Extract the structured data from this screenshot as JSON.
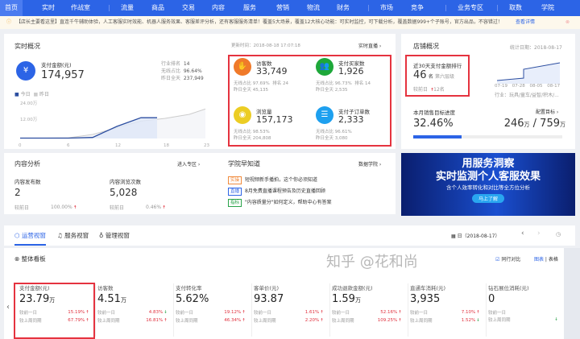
{
  "nav": {
    "items": [
      "首页",
      "实时",
      "作战室",
      "流量",
      "商品",
      "交易",
      "内容",
      "服务",
      "营销",
      "物流",
      "财务",
      "市场",
      "竞争",
      "业务专区",
      "取数",
      "学院"
    ],
    "active": "首页"
  },
  "notice": {
    "text": "【店长主要看这里】直连千牛辅助体验，人工客服实时效能、机器人服务效果、客服差评分析，还有客服服务清单！覆盖5大场景，覆盖12大核心功能：可实时监控，可下载分析，覆盖数据999+个子账号，官方出品，不容错过！",
    "link": "查看详情"
  },
  "realtime": {
    "title": "实时概况",
    "update_time": "更新时间：2018-08-18 17:07:18",
    "live_link": "实时直播 ›",
    "pay": {
      "label": "支付金额(元)",
      "value": "174,957",
      "rank_label": "行业排名",
      "rank": "14",
      "wireless_label": "无线占比",
      "wireless": "96.64%",
      "yesterday_label": "昨日全天",
      "yesterday": "237,949"
    },
    "legend": {
      "today": "今日",
      "yesterday": "昨日"
    },
    "chart_data": {
      "type": "line",
      "x_ticks": [
        "0",
        "6",
        "12",
        "18",
        "23"
      ],
      "y_ticks": [
        "12.00万",
        "24.00万"
      ],
      "series": [
        {
          "name": "今日",
          "x": [
            0,
            3,
            6,
            9,
            12,
            15,
            17
          ],
          "y": [
            0.3,
            0.3,
            0.3,
            0.8,
            9,
            15.5,
            15.5
          ]
        },
        {
          "name": "昨日",
          "x": [
            0,
            3,
            6,
            9,
            12,
            15,
            18,
            21,
            23
          ],
          "y": [
            0.3,
            0.3,
            0.5,
            3,
            8,
            13,
            15,
            18,
            22
          ]
        }
      ]
    },
    "metrics": [
      {
        "label": "访客数",
        "value": "33,749",
        "l1": "无线占比",
        "v1": "97.69%",
        "l2": "排名",
        "v2": "24",
        "l3": "昨日全天",
        "v3": "45,135",
        "color": "#f07a2a",
        "icon": "footprint-icon"
      },
      {
        "label": "支付买家数",
        "value": "1,926",
        "l1": "无线占比",
        "v1": "96.73%",
        "l2": "排名",
        "v2": "14",
        "l3": "昨日全天",
        "v3": "2,535",
        "color": "#1ea83a",
        "icon": "users-icon"
      },
      {
        "label": "浏览量",
        "value": "157,173",
        "l1": "无线占比",
        "v1": "98.53%",
        "l3": "昨日全天",
        "v3": "204,808",
        "color": "#eccd24",
        "icon": "eye-icon"
      },
      {
        "label": "支付子订单数",
        "value": "2,333",
        "l1": "无线占比",
        "v1": "96.61%",
        "l3": "昨日全天",
        "v3": "3,080",
        "color": "#1ea0ef",
        "icon": "order-icon"
      }
    ]
  },
  "shop": {
    "title": "店铺概况",
    "stat_date": "统计日期：2018-08-17",
    "rank_title": "近30天支付金额排行",
    "rank": "46",
    "rank_unit": "名",
    "tier": "第六层级",
    "compare_label": "较前日",
    "compare": "12名",
    "chart_x": [
      "07-19",
      "07-28",
      "08-05",
      "08-17"
    ],
    "industry": "行业：玩具/童车/益智/积木/...",
    "goal_title": "本月销售目标进度",
    "goal_link": "配置目标 ›",
    "goal_pct": "32.46%",
    "goal_done": "246",
    "goal_total": "759",
    "unit": "万",
    "progress": 32.46
  },
  "content": {
    "title": "内容分析",
    "link": "进入专区 ›",
    "items": [
      {
        "label": "内容发布数",
        "value": "2",
        "cmp": "较前日",
        "pct": "100.00%"
      },
      {
        "label": "内容浏览次数",
        "value": "5,028",
        "cmp": "较前日",
        "pct": "0.46%"
      }
    ]
  },
  "academy": {
    "title": "学院早知道",
    "link": "数据学院 ›",
    "items": [
      {
        "tag": "实操",
        "text": "短视频新手播拍，这个你必须知道",
        "color": "#f08a3c"
      },
      {
        "tag": "直播",
        "text": "8月免费直播课程预告及历史直播回顾",
        "color": "#2c64e6"
      },
      {
        "tag": "指标",
        "text": "\"内容质量分\"如何定义，帮助中心有答案",
        "color": "#2aa34a"
      }
    ]
  },
  "banner": {
    "line1": "用服务洞察",
    "line2": "实时监测个人客服效果",
    "line3": "含个人效率转化和对比等全方位分析",
    "button": "马上了解"
  },
  "tabs": {
    "items": [
      "运营视窗",
      "服务视窗",
      "管理视窗"
    ],
    "active": "运营视窗",
    "date": "日（2018-08-17）"
  },
  "board": {
    "title": "整体看板",
    "compare": "同行对比",
    "view1": "图表",
    "view2": "表格",
    "metrics": [
      {
        "label": "支付金额(元)",
        "value": "23.79",
        "unit": "万",
        "c1": "较前一日",
        "p1": "15.19%",
        "d1": "up",
        "c2": "较上周同期",
        "p2": "67.79%",
        "d2": "up"
      },
      {
        "label": "访客数",
        "value": "4.51",
        "unit": "万",
        "c1": "较前一日",
        "p1": "4.83%",
        "d1": "down",
        "c2": "较上周同期",
        "p2": "16.81%",
        "d2": "up"
      },
      {
        "label": "支付转化率",
        "value": "5.62%",
        "unit": "",
        "c1": "较前一日",
        "p1": "19.12%",
        "d1": "up",
        "c2": "较上周同期",
        "p2": "46.34%",
        "d2": "up"
      },
      {
        "label": "客单价(元)",
        "value": "93.87",
        "unit": "",
        "c1": "较前一日",
        "p1": "1.61%",
        "d1": "up",
        "c2": "较上周同期",
        "p2": "2.20%",
        "d2": "up"
      },
      {
        "label": "成功退款金额(元)",
        "value": "1.59",
        "unit": "万",
        "c1": "较前一日",
        "p1": "52.16%",
        "d1": "up",
        "c2": "较上周同期",
        "p2": "109.25%",
        "d2": "up"
      },
      {
        "label": "直通车消耗(元)",
        "value": "3,935",
        "unit": "",
        "c1": "较前一日",
        "p1": "7.10%",
        "d1": "up",
        "c2": "较上周同期",
        "p2": "1.52%",
        "d2": "down"
      },
      {
        "label": "钻石展位消耗(元)",
        "value": "0",
        "unit": "",
        "c1": "较前一日",
        "p1": "",
        "d1": "",
        "c2": "较上周同期",
        "p2": "",
        "d2": "down"
      }
    ]
  },
  "watermark": "知乎 @花和尚"
}
